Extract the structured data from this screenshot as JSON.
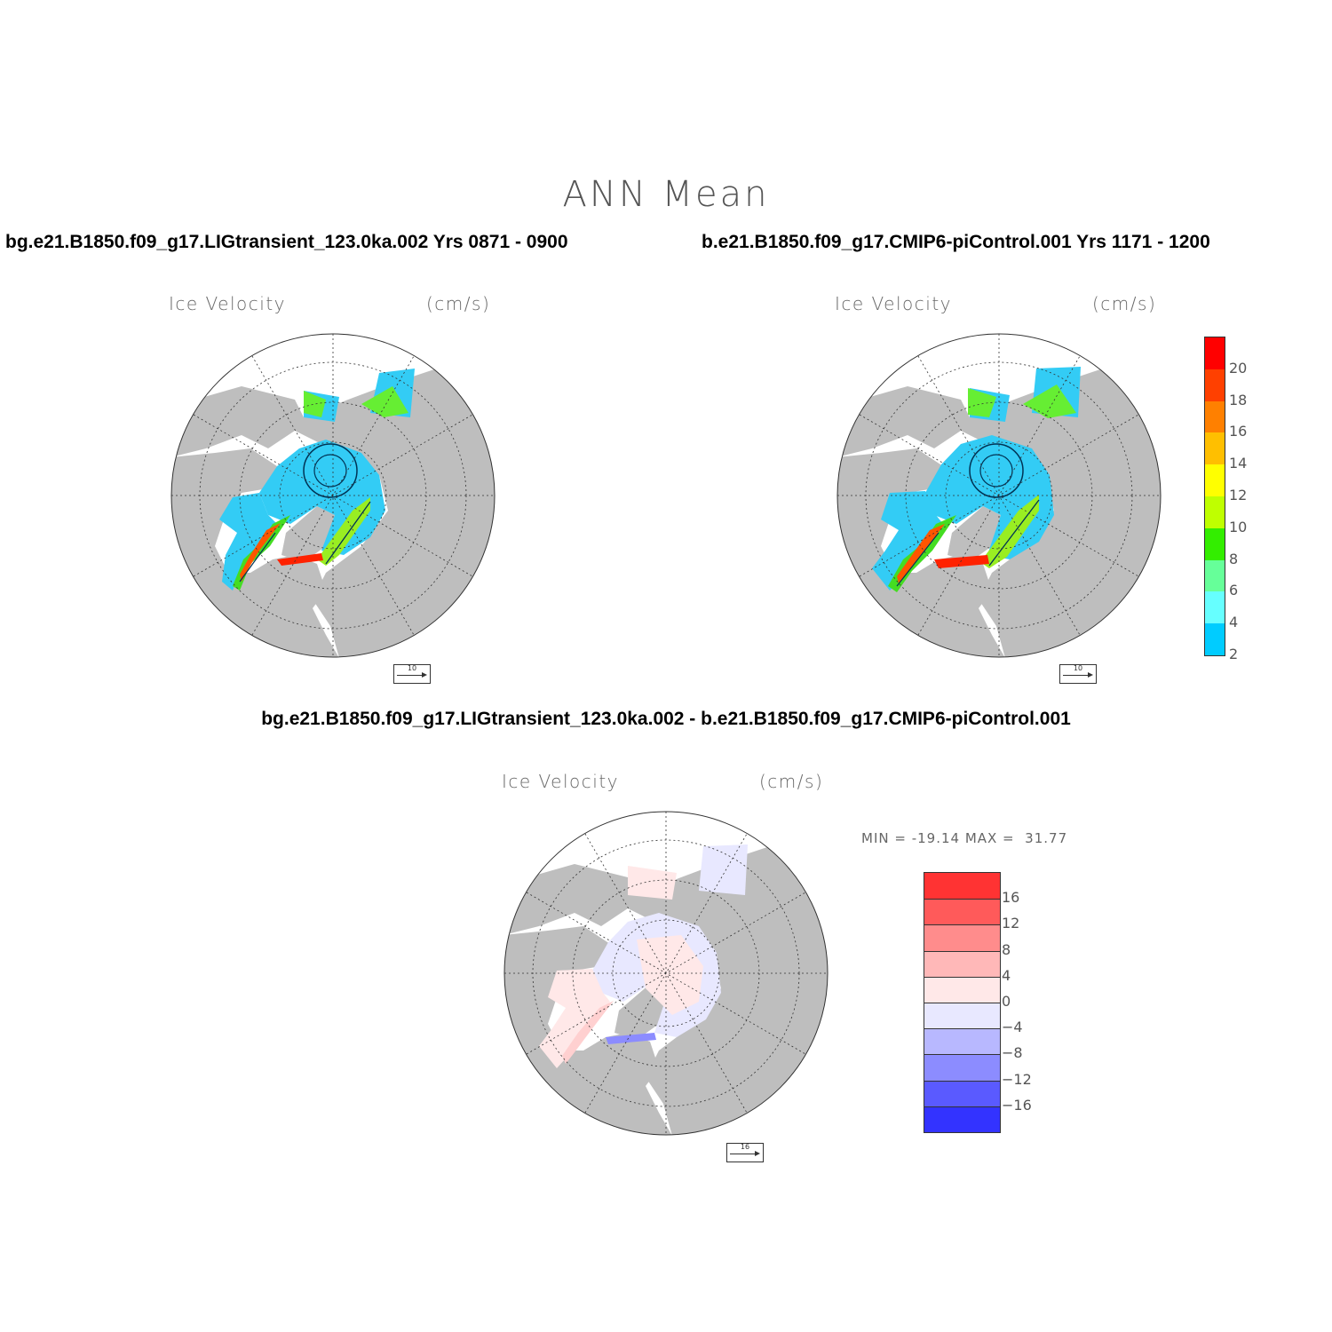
{
  "title": "ANN Mean",
  "panels": {
    "left": {
      "case_title": "bg.e21.B1850.f09_g17.LIGtransient_123.0ka.002  Yrs 0871 - 0900",
      "variable": "Ice Velocity",
      "units": "(cm/s)",
      "ref_vector": "10"
    },
    "right": {
      "case_title": "b.e21.B1850.f09_g17.CMIP6-piControl.001  Yrs 1171 - 1200",
      "variable": "Ice Velocity",
      "units": "(cm/s)",
      "ref_vector": "10"
    },
    "diff": {
      "case_title": "bg.e21.B1850.f09_g17.LIGtransient_123.0ka.002 - b.e21.B1850.f09_g17.CMIP6-piControl.001",
      "variable": "Ice Velocity",
      "units": "(cm/s)",
      "ref_vector": "16",
      "min_max": "MIN = -19.14 MAX =  31.77"
    }
  },
  "colorbar_abs": {
    "labels": [
      "20",
      "18",
      "16",
      "14",
      "12",
      "10",
      "8",
      "6",
      "4",
      "2"
    ],
    "colors": [
      "#ff0000",
      "#ff4000",
      "#ff8000",
      "#ffbf00",
      "#ffff00",
      "#bfff00",
      "#33ee00",
      "#66ff99",
      "#66ffff",
      "#00ccff"
    ]
  },
  "colorbar_diff": {
    "labels": [
      "16",
      "12",
      "8",
      "4",
      "0",
      "−4",
      "−8",
      "−12",
      "−16"
    ],
    "colors": [
      "#ff3333",
      "#ff5a5a",
      "#ff8c8c",
      "#ffb8b8",
      "#ffe8e8",
      "#e8e8ff",
      "#b8b8ff",
      "#8c8cff",
      "#5a5aff",
      "#3333ff"
    ]
  },
  "colors": {
    "land": "#bebebe",
    "ocean": "#ffffff"
  }
}
